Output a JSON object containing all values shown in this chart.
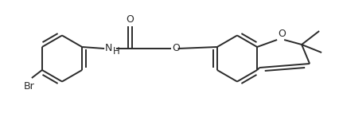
{
  "bg_color": "#ffffff",
  "line_color": "#2a2a2a",
  "line_width": 1.4,
  "dbo": 0.008,
  "fs": 8.5,
  "fig_width": 4.26,
  "fig_height": 1.47,
  "xlim": [
    0,
    4.26
  ],
  "ylim": [
    0,
    1.47
  ]
}
